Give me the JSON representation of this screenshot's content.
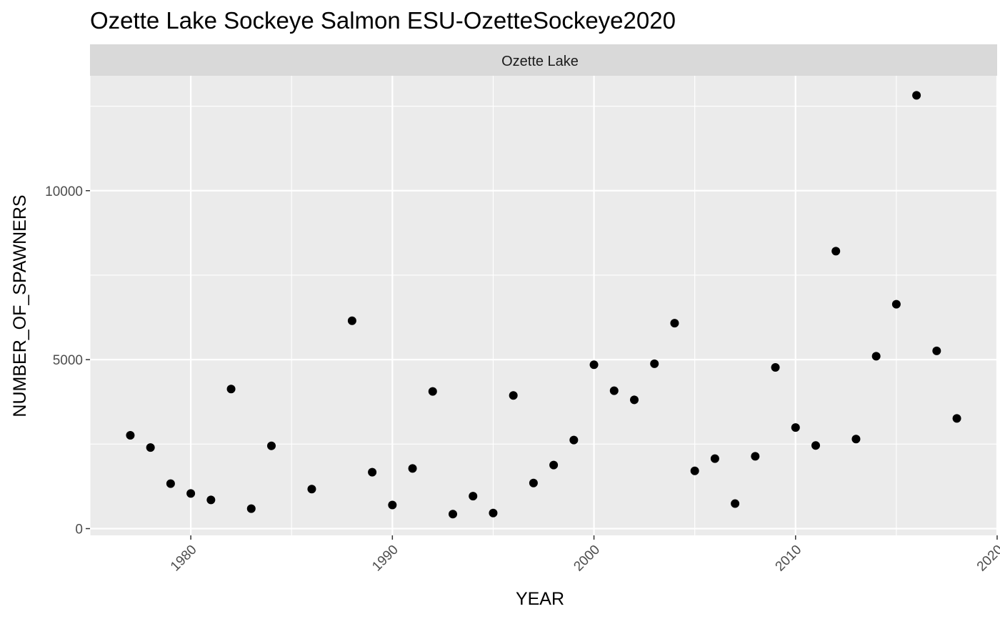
{
  "chart_data": {
    "type": "scatter",
    "title": "Ozette Lake Sockeye Salmon ESU-OzetteSockeye2020",
    "facet_label": "Ozette Lake",
    "xlabel": "YEAR",
    "ylabel": "NUMBER_OF_SPAWNERS",
    "xlim": [
      1975,
      2020
    ],
    "ylim": [
      -200,
      13400
    ],
    "x_ticks": [
      1980,
      1990,
      2000,
      2010,
      2020
    ],
    "x_tick_labels": [
      "1980",
      "1990",
      "2000",
      "2010",
      "2020"
    ],
    "y_ticks": [
      0,
      5000,
      10000
    ],
    "y_tick_labels": [
      "0",
      "5000",
      "10000"
    ],
    "grid": true,
    "panel_background": "#ebebeb",
    "strip_background": "#d9d9d9",
    "point_color": "#000000",
    "x": [
      1977,
      1978,
      1979,
      1980,
      1981,
      1982,
      1983,
      1984,
      1986,
      1988,
      1989,
      1990,
      1991,
      1992,
      1993,
      1994,
      1995,
      1996,
      1997,
      1998,
      1999,
      2000,
      2001,
      2002,
      2003,
      2004,
      2005,
      2006,
      2007,
      2008,
      2009,
      2010,
      2011,
      2012,
      2013,
      2014,
      2015,
      2016,
      2017,
      2018
    ],
    "y": [
      2760,
      2400,
      1330,
      1040,
      850,
      4130,
      590,
      2450,
      1170,
      6150,
      1670,
      700,
      1780,
      4060,
      430,
      960,
      460,
      3940,
      1350,
      1880,
      2620,
      4850,
      4080,
      3810,
      4880,
      6080,
      1710,
      2070,
      740,
      2140,
      4770,
      2990,
      2460,
      8210,
      2650,
      5100,
      6640,
      12820,
      5260,
      3260
    ]
  }
}
